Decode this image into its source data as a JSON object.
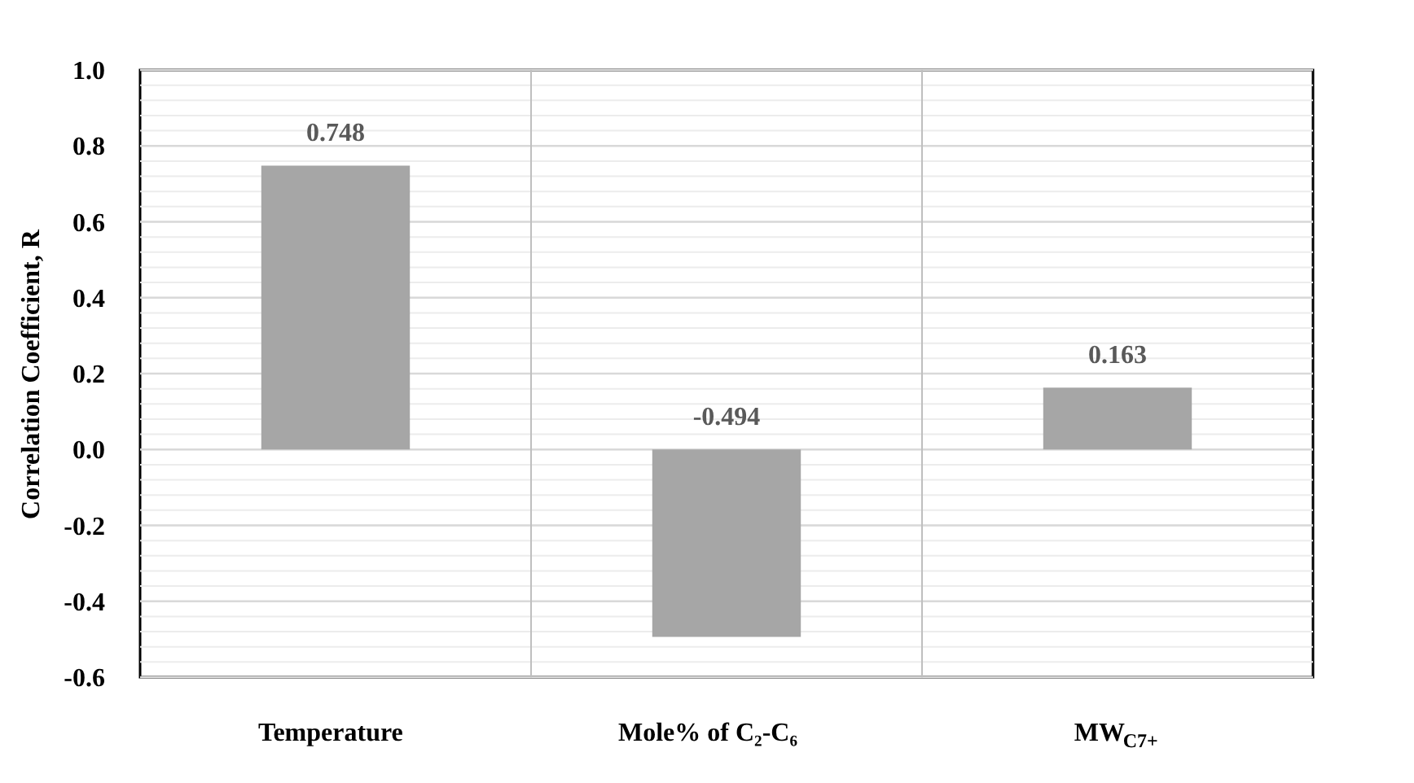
{
  "chart_data": {
    "type": "bar",
    "ylabel": "Correlation Coefficient, R",
    "categories": [
      "Temperature",
      "Mole% of C₂-C₆",
      "MW$_{C7+}$"
    ],
    "values": [
      0.748,
      -0.494,
      0.163
    ],
    "color": "#a6a6a6",
    "ylim": [
      -0.6,
      1.0
    ],
    "yticks": [
      -0.6,
      -0.4,
      -0.2,
      {
        "value": 0,
        "label": "0.0"
      },
      0.2,
      0.4,
      0.6,
      0.8,
      {
        "value": 1,
        "label": "1.0"
      }
    ],
    "grid": true,
    "data_labels": true
  }
}
